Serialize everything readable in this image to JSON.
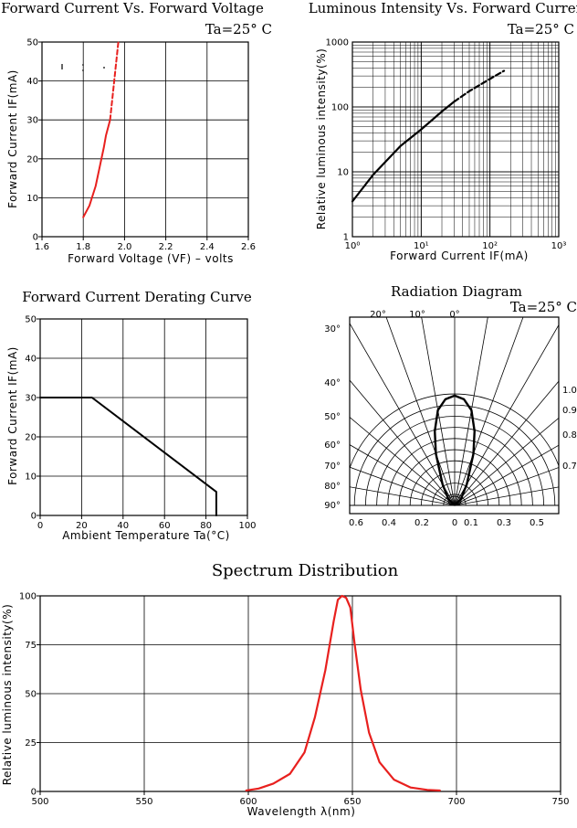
{
  "chart_data": [
    {
      "type": "line",
      "title": "Forward Current Vs. Forward Voltage",
      "annotation": "Ta=25° C",
      "xlabel": "Forward Voltage (VF) – volts",
      "ylabel": "Forward Current IF(mA)",
      "xlim": [
        1.6,
        2.6
      ],
      "ylim": [
        0,
        50
      ],
      "x_ticks": [
        "1.6",
        "1.8",
        "2.0",
        "2.2",
        "2.4",
        "2.6"
      ],
      "y_ticks": [
        "0",
        "10",
        "20",
        "30",
        "40",
        "50"
      ],
      "grid": true,
      "series": [
        {
          "style": "solid",
          "color": "#e8201e",
          "x": [
            1.8,
            1.83,
            1.86,
            1.88,
            1.9,
            1.91,
            1.93
          ],
          "y": [
            5,
            8,
            13,
            18,
            23,
            26,
            30
          ]
        },
        {
          "style": "dashed",
          "color": "#e8201e",
          "x": [
            1.93,
            1.94,
            1.95,
            1.96,
            1.97
          ],
          "y": [
            30,
            35,
            40,
            45,
            50
          ]
        }
      ]
    },
    {
      "type": "line",
      "title": "Luminous Intensity Vs. Forward Current",
      "annotation": "Ta=25° C",
      "xlabel": "Forward Current IF(mA)",
      "ylabel": "Relative luminous intensity(%)",
      "xscale": "log",
      "yscale": "log",
      "xlim": [
        1,
        1000
      ],
      "ylim": [
        1,
        1000
      ],
      "x_ticks": [
        "10⁰",
        "10¹",
        "10²",
        "10³"
      ],
      "y_ticks": [
        "1",
        "10",
        "100",
        "1000"
      ],
      "grid": true,
      "series": [
        {
          "style": "solid",
          "color": "#000000",
          "x": [
            1,
            2,
            5,
            10,
            20,
            30
          ],
          "y": [
            3.5,
            9,
            25,
            45,
            85,
            120
          ]
        },
        {
          "style": "dashed",
          "color": "#000000",
          "x": [
            30,
            50,
            100,
            160
          ],
          "y": [
            120,
            175,
            270,
            360
          ]
        }
      ]
    },
    {
      "type": "line",
      "title": "Forward Current Derating Curve",
      "xlabel": "Ambient Temperature Ta(°C)",
      "ylabel": "Forward Current IF(mA)",
      "xlim": [
        0,
        100
      ],
      "ylim": [
        0,
        50
      ],
      "x_ticks": [
        "0",
        "20",
        "40",
        "60",
        "80",
        "100"
      ],
      "y_ticks": [
        "0",
        "10",
        "20",
        "30",
        "40",
        "50"
      ],
      "grid": true,
      "series": [
        {
          "style": "solid",
          "color": "#000000",
          "x": [
            0,
            25,
            85,
            85
          ],
          "y": [
            30,
            30,
            6,
            0
          ]
        }
      ]
    },
    {
      "type": "polar",
      "title": "Radiation Diagram",
      "annotation": "Ta=25° C",
      "angle_labels": [
        "30°",
        "20°",
        "10°",
        "0°",
        "40°",
        "50°",
        "60°",
        "70°",
        "80°",
        "90°"
      ],
      "radial_labels": [
        "1.0",
        "0.9",
        "0.8",
        "0.7"
      ],
      "x_ticks": [
        "0.6",
        "0.4",
        "0.2",
        "0",
        "0.1",
        "0.3",
        "0.5"
      ],
      "series": [
        {
          "style": "solid",
          "color": "#000000",
          "angle_deg": [
            0,
            5,
            10,
            15,
            20,
            30,
            45,
            90
          ],
          "relative_intensity": [
            1.0,
            0.97,
            0.88,
            0.7,
            0.5,
            0.22,
            0.08,
            0.0
          ]
        }
      ]
    },
    {
      "type": "line",
      "title": "Spectrum Distribution",
      "xlabel": "Wavelength λ(nm)",
      "ylabel": "Relative luminous intensity(%)",
      "xlim": [
        500,
        750
      ],
      "ylim": [
        0,
        100
      ],
      "x_ticks": [
        "500",
        "550",
        "600",
        "650",
        "700",
        "750"
      ],
      "y_ticks": [
        "0",
        "25",
        "50",
        "75",
        "100"
      ],
      "grid": true,
      "series": [
        {
          "style": "solid",
          "color": "#e8201e",
          "x": [
            599,
            605,
            612,
            620,
            627,
            632,
            637,
            641,
            643,
            645,
            647,
            649,
            651,
            654,
            658,
            663,
            670,
            678,
            686,
            692
          ],
          "y": [
            0.5,
            1.5,
            4,
            9,
            20,
            38,
            62,
            87,
            98,
            100,
            99,
            94,
            76,
            52,
            30,
            15,
            6,
            2,
            0.8,
            0.5
          ]
        }
      ]
    }
  ]
}
